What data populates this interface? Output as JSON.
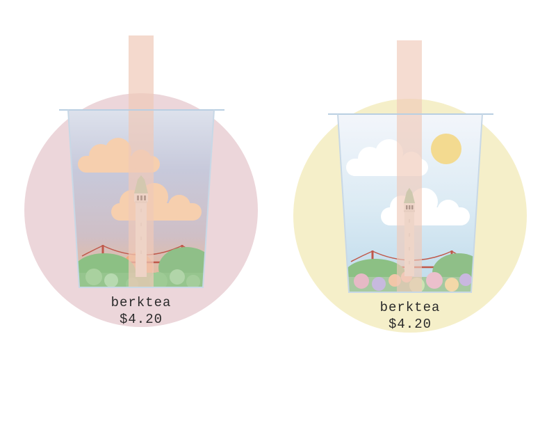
{
  "colors": {
    "pink_badge": "#ecd6da",
    "yellow_badge": "#f5efc9",
    "straw": "#efc9b8",
    "cloud_warm": "#f6cfae",
    "cloud_white": "#ffffff",
    "sun": "#f3da90",
    "tower": "#ecebe6",
    "tower_roof": "#8fc79b",
    "bridge": "#c0584a",
    "hill": "#8cc084"
  },
  "cups": [
    {
      "name": "sunset-cup",
      "brand": "berktea",
      "price": "$4.20",
      "theme": "sunset"
    },
    {
      "name": "daytime-cup",
      "brand": "berktea",
      "price": "$4.20",
      "theme": "daytime"
    }
  ]
}
